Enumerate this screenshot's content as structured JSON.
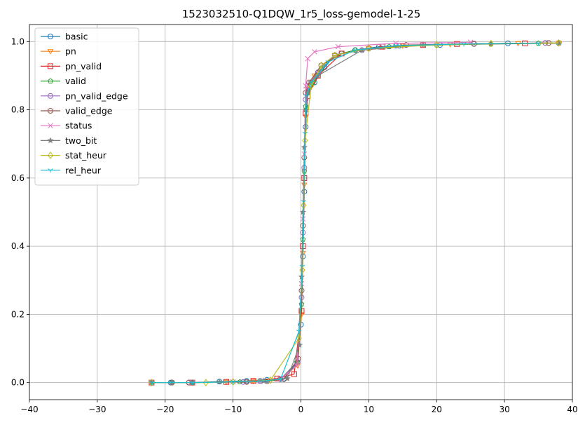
{
  "chart_data": {
    "type": "line",
    "title": "1523032510-Q1DQW_1r5_loss-gemodel-1-25",
    "xlabel": "",
    "ylabel": "",
    "xlim": [
      -40,
      40
    ],
    "ylim": [
      -0.05,
      1.05
    ],
    "xticks": [
      -40,
      -30,
      -20,
      -10,
      0,
      10,
      20,
      30,
      40
    ],
    "xtick_labels": [
      "−40",
      "−30",
      "−20",
      "−10",
      "0",
      "10",
      "20",
      "30",
      "40"
    ],
    "yticks": [
      0.0,
      0.2,
      0.4,
      0.6,
      0.8,
      1.0
    ],
    "ytick_labels": [
      "0.0",
      "0.2",
      "0.4",
      "0.6",
      "0.8",
      "1.0"
    ],
    "grid": true,
    "legend_position": "upper-left",
    "series": [
      {
        "name": "basic",
        "color": "#1f77b4",
        "marker": "circle",
        "x": [
          -22,
          -19.2,
          -16.5,
          -12,
          -8,
          -5,
          -2.5,
          -0.5,
          0,
          0.3,
          0.5,
          0.7,
          1,
          2,
          3.5,
          5,
          8,
          11.5,
          14.5,
          20.5,
          25.5,
          30.5,
          38
        ],
        "y": [
          0.0,
          0.0,
          0.0,
          0.003,
          0.005,
          0.008,
          0.012,
          0.06,
          0.17,
          0.37,
          0.56,
          0.75,
          0.85,
          0.88,
          0.925,
          0.96,
          0.975,
          0.985,
          0.988,
          0.99,
          0.993,
          0.995,
          0.996
        ]
      },
      {
        "name": "pn",
        "color": "#ff7f0e",
        "marker": "triangle-down",
        "x": [
          -22,
          -19,
          -16,
          -11,
          -7,
          -3,
          -0.5,
          0.1,
          0.3,
          0.5,
          0.7,
          1,
          2,
          5,
          10,
          15,
          22,
          32,
          38
        ],
        "y": [
          0.0,
          0.0,
          0.0,
          0.002,
          0.004,
          0.01,
          0.05,
          0.2,
          0.38,
          0.58,
          0.78,
          0.86,
          0.9,
          0.96,
          0.98,
          0.988,
          0.992,
          0.995,
          0.996
        ]
      },
      {
        "name": "pn_valid",
        "color": "#d62728",
        "marker": "square",
        "x": [
          -22,
          -16,
          -11,
          -7,
          -3.5,
          -1,
          0.1,
          0.3,
          0.5,
          0.7,
          1,
          2.5,
          6,
          12,
          18,
          23,
          33
        ],
        "y": [
          0.0,
          0.0,
          0.002,
          0.005,
          0.012,
          0.025,
          0.21,
          0.4,
          0.6,
          0.79,
          0.84,
          0.9,
          0.965,
          0.985,
          0.99,
          0.993,
          0.995
        ]
      },
      {
        "name": "valid",
        "color": "#2ca02c",
        "marker": "pentagon",
        "x": [
          -22,
          -19,
          -16,
          -9,
          -6,
          -3,
          -0.6,
          0.1,
          0.3,
          0.5,
          0.7,
          1,
          1.8,
          3,
          5,
          8,
          13,
          20,
          28,
          35
        ],
        "y": [
          0.0,
          0.0,
          0.0,
          0.002,
          0.004,
          0.01,
          0.06,
          0.23,
          0.42,
          0.62,
          0.81,
          0.85,
          0.88,
          0.92,
          0.96,
          0.975,
          0.985,
          0.99,
          0.993,
          0.995
        ]
      },
      {
        "name": "pn_valid_edge",
        "color": "#9467bd",
        "marker": "circle",
        "x": [
          -22,
          -19,
          -16.5,
          -8.5,
          -6,
          -3,
          -0.5,
          0.1,
          0.3,
          0.5,
          0.7,
          1,
          2.5,
          5,
          9,
          14,
          25.5,
          36
        ],
        "y": [
          0.0,
          0.0,
          0.0,
          0.002,
          0.005,
          0.01,
          0.06,
          0.25,
          0.44,
          0.63,
          0.83,
          0.87,
          0.91,
          0.96,
          0.975,
          0.988,
          0.993,
          0.996
        ]
      },
      {
        "name": "valid_edge",
        "color": "#8c564b",
        "marker": "circle",
        "x": [
          -22,
          -19,
          -16.5,
          -8,
          -5,
          -2.5,
          -0.4,
          0.1,
          0.3,
          0.5,
          0.7,
          1.2,
          3,
          6,
          10,
          15.5,
          25.5,
          36.5
        ],
        "y": [
          0.0,
          0.0,
          0.0,
          0.002,
          0.004,
          0.01,
          0.07,
          0.27,
          0.46,
          0.66,
          0.85,
          0.88,
          0.93,
          0.965,
          0.98,
          0.99,
          0.994,
          0.996
        ]
      },
      {
        "name": "status",
        "color": "#e377c2",
        "marker": "x",
        "x": [
          -22,
          -16,
          -10,
          -6,
          -3,
          -0.6,
          0.1,
          0.3,
          0.5,
          0.7,
          1,
          2,
          5.5,
          14,
          25
        ],
        "y": [
          0.0,
          0.0,
          0.002,
          0.004,
          0.01,
          0.05,
          0.29,
          0.48,
          0.67,
          0.87,
          0.95,
          0.97,
          0.985,
          0.995,
          0.998
        ]
      },
      {
        "name": "two_bit",
        "color": "#7f7f7f",
        "marker": "star",
        "x": [
          -22,
          -19,
          -16,
          -12,
          -5.5,
          -2,
          -0.2,
          0.1,
          0.3,
          0.5,
          0.7,
          1,
          1.5,
          2.5,
          9,
          18,
          28,
          38
        ],
        "y": [
          0.0,
          0.0,
          0.0,
          0.002,
          0.005,
          0.012,
          0.11,
          0.31,
          0.5,
          0.69,
          0.8,
          0.85,
          0.88,
          0.9,
          0.975,
          0.99,
          0.993,
          0.995
        ]
      },
      {
        "name": "stat_heur",
        "color": "#bcbd22",
        "marker": "diamond",
        "x": [
          -22,
          -14,
          -10,
          -4.5,
          -0.3,
          0.2,
          0.4,
          0.6,
          1.5,
          3,
          5,
          10,
          20,
          28,
          38
        ],
        "y": [
          0.0,
          0.0,
          0.002,
          0.007,
          0.13,
          0.33,
          0.52,
          0.71,
          0.87,
          0.93,
          0.96,
          0.98,
          0.99,
          0.994,
          0.996
        ]
      },
      {
        "name": "rel_heur",
        "color": "#17becf",
        "marker": "tri-down",
        "x": [
          -22,
          -19,
          -16,
          -10,
          -6,
          -3,
          -0.3,
          0.2,
          0.4,
          0.6,
          0.8,
          1.5,
          4,
          8,
          14,
          24,
          35
        ],
        "y": [
          0.0,
          0.0,
          0.0,
          0.002,
          0.004,
          0.01,
          0.15,
          0.34,
          0.53,
          0.73,
          0.84,
          0.88,
          0.94,
          0.975,
          0.988,
          0.993,
          0.995
        ]
      }
    ]
  }
}
